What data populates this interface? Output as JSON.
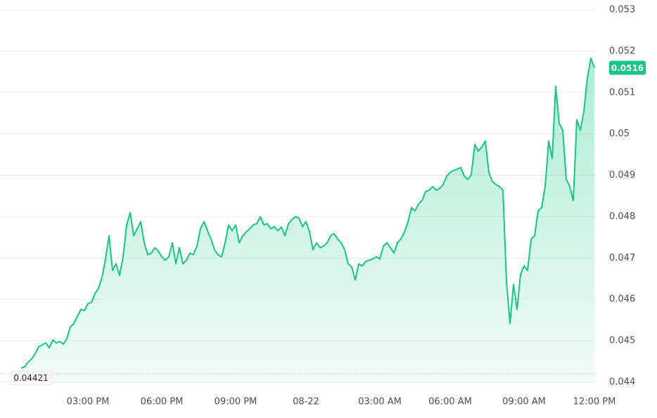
{
  "chart_data": {
    "type": "area",
    "categories": [
      null,
      null,
      null,
      null,
      null,
      null,
      null,
      null,
      null,
      null,
      null,
      null,
      null,
      null,
      null,
      null,
      null,
      null,
      null,
      "03:00 PM",
      null,
      null,
      null,
      null,
      null,
      null,
      null,
      null,
      null,
      null,
      null,
      null,
      null,
      null,
      null,
      null,
      null,
      null,
      null,
      null,
      "06:00 PM",
      null,
      null,
      null,
      null,
      null,
      null,
      null,
      null,
      null,
      null,
      null,
      null,
      null,
      null,
      null,
      null,
      null,
      null,
      null,
      null,
      "09:00 PM",
      null,
      null,
      null,
      null,
      null,
      null,
      null,
      null,
      null,
      null,
      null,
      null,
      null,
      null,
      null,
      null,
      null,
      null,
      null,
      "08-22",
      null,
      null,
      null,
      null,
      null,
      null,
      null,
      null,
      null,
      null,
      null,
      null,
      null,
      null,
      null,
      null,
      null,
      null,
      null,
      null,
      "03:00 AM",
      null,
      null,
      null,
      null,
      null,
      null,
      null,
      null,
      null,
      null,
      null,
      null,
      null,
      null,
      null,
      null,
      null,
      null,
      null,
      "06:00 AM",
      null,
      null,
      null,
      null,
      null,
      null,
      null,
      null,
      null,
      null,
      null,
      null,
      null,
      null,
      null,
      null,
      null,
      null,
      null,
      null,
      "09:00 AM",
      null,
      null,
      null,
      null,
      null,
      null,
      null,
      null,
      null,
      null,
      null,
      null,
      null,
      null,
      null,
      null,
      null,
      null,
      null,
      "12:00 PM"
    ],
    "series": [
      {
        "color": "#16c784",
        "values": [
          0.04434,
          0.04437,
          0.04449,
          0.04456,
          0.04469,
          0.04486,
          0.0449,
          0.04495,
          0.04483,
          0.04502,
          0.04495,
          0.04498,
          0.04492,
          0.04505,
          0.04534,
          0.04542,
          0.04559,
          0.04576,
          0.04573,
          0.0459,
          0.04593,
          0.04614,
          0.04627,
          0.04653,
          0.04698,
          0.04754,
          0.0467,
          0.04686,
          0.04658,
          0.04703,
          0.0478,
          0.0481,
          0.04754,
          0.04771,
          0.04788,
          0.04737,
          0.04708,
          0.04712,
          0.04725,
          0.04717,
          0.04703,
          0.04695,
          0.04703,
          0.04737,
          0.04686,
          0.04725,
          0.04686,
          0.04695,
          0.04712,
          0.04708,
          0.04729,
          0.04771,
          0.04788,
          0.04766,
          0.04746,
          0.0472,
          0.04708,
          0.04703,
          0.04737,
          0.0478,
          0.04766,
          0.0478,
          0.04737,
          0.04754,
          0.04763,
          0.04771,
          0.0478,
          0.04783,
          0.048,
          0.0478,
          0.04783,
          0.04771,
          0.04776,
          0.04766,
          0.04775,
          0.04754,
          0.04783,
          0.04793,
          0.048,
          0.04797,
          0.04776,
          0.04788,
          0.04763,
          0.0472,
          0.04737,
          0.04725,
          0.04729,
          0.04737,
          0.04754,
          0.04759,
          0.04746,
          0.04737,
          0.0472,
          0.04686,
          0.04678,
          0.04647,
          0.04686,
          0.04681,
          0.04692,
          0.04695,
          0.04698,
          0.04703,
          0.04698,
          0.04729,
          0.04737,
          0.04725,
          0.04712,
          0.04737,
          0.04746,
          0.04763,
          0.04788,
          0.04822,
          0.04814,
          0.04831,
          0.04839,
          0.04861,
          0.04864,
          0.04873,
          0.04864,
          0.04868,
          0.04878,
          0.04898,
          0.04907,
          0.04912,
          0.04915,
          0.04919,
          0.04898,
          0.0489,
          0.04902,
          0.04975,
          0.04958,
          0.04969,
          0.04983,
          0.04907,
          0.04885,
          0.04878,
          0.04873,
          0.04864,
          0.04644,
          0.04542,
          0.04636,
          0.04576,
          0.04661,
          0.04681,
          0.0467,
          0.04746,
          0.04754,
          0.04814,
          0.04822,
          0.04873,
          0.04983,
          0.04941,
          0.05115,
          0.05025,
          0.05009,
          0.0489,
          0.04873,
          0.04839,
          0.05034,
          0.05009,
          0.05054,
          0.05136,
          0.05183,
          0.0516
        ]
      }
    ],
    "reference_value": 0.04421,
    "ylim": [
      0.044,
      0.053
    ],
    "yticks": [
      0.053,
      0.052,
      0.051,
      0.05,
      0.049,
      0.048,
      0.047,
      0.046,
      0.045,
      0.044
    ],
    "grid": true
  }
}
